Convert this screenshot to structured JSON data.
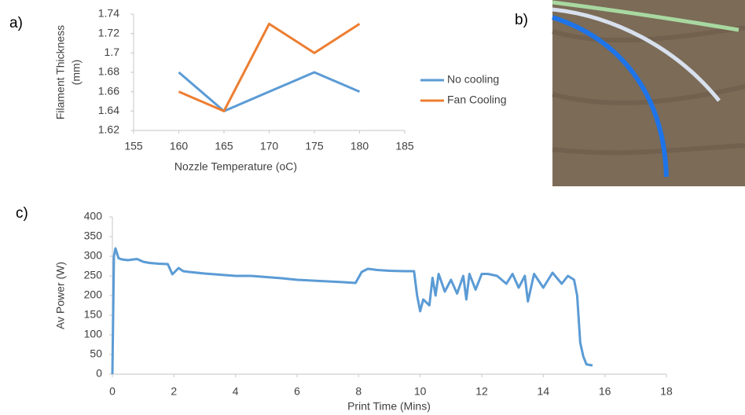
{
  "chart_data": [
    {
      "type": "line",
      "label": "a)",
      "x": [
        160,
        165,
        170,
        175,
        180
      ],
      "series": [
        {
          "name": "No cooling",
          "color": "#5b9bd5",
          "values": [
            1.68,
            1.64,
            1.66,
            1.68,
            1.66
          ]
        },
        {
          "name": "Fan Cooling",
          "color": "#ed7d31",
          "values": [
            1.66,
            1.64,
            1.73,
            1.7,
            1.73
          ]
        }
      ],
      "xlabel": "Nozzle Temperature (oC)",
      "ylabel": [
        "Filament Thickness",
        "(mm)"
      ],
      "xlim": [
        155,
        185
      ],
      "xticks": [
        155,
        160,
        165,
        170,
        175,
        180,
        185
      ],
      "ylim": [
        1.62,
        1.74
      ],
      "yticks": [
        1.62,
        1.64,
        1.66,
        1.68,
        1.7,
        1.72,
        1.74
      ],
      "legend": "right"
    },
    {
      "type": "line",
      "label": "c)",
      "x": [
        0,
        0.05,
        0.1,
        0.2,
        0.3,
        0.5,
        0.8,
        1.0,
        1.2,
        1.5,
        1.8,
        1.95,
        2.05,
        2.15,
        2.3,
        2.5,
        3,
        3.5,
        4,
        4.5,
        5,
        5.5,
        6,
        6.5,
        7,
        7.5,
        7.9,
        8.1,
        8.3,
        8.6,
        9,
        9.5,
        9.8,
        9.9,
        10.0,
        10.1,
        10.3,
        10.4,
        10.5,
        10.6,
        10.8,
        11,
        11.2,
        11.4,
        11.5,
        11.6,
        11.8,
        12,
        12.2,
        12.5,
        12.8,
        13,
        13.2,
        13.4,
        13.5,
        13.7,
        14,
        14.3,
        14.6,
        14.8,
        15,
        15.1,
        15.2,
        15.3,
        15.4,
        15.6
      ],
      "series": [
        {
          "color": "#5b9bd5",
          "values": [
            0,
            300,
            320,
            295,
            292,
            290,
            293,
            286,
            283,
            281,
            280,
            254,
            262,
            270,
            262,
            260,
            256,
            253,
            250,
            250,
            247,
            244,
            240,
            238,
            236,
            234,
            232,
            260,
            268,
            265,
            263,
            262,
            262,
            200,
            160,
            190,
            175,
            245,
            200,
            255,
            210,
            240,
            205,
            250,
            190,
            255,
            215,
            255,
            255,
            250,
            230,
            255,
            220,
            250,
            185,
            255,
            220,
            258,
            230,
            250,
            240,
            200,
            80,
            45,
            25,
            22
          ]
        }
      ],
      "xlabel": "Print Time (Mins)",
      "ylabel": "Av Power (W)",
      "xlim": [
        0,
        18
      ],
      "xticks": [
        0,
        2,
        4,
        6,
        8,
        10,
        12,
        14,
        16,
        18
      ],
      "ylim": [
        0,
        400
      ],
      "yticks": [
        0,
        50,
        100,
        150,
        200,
        250,
        300,
        350,
        400
      ]
    }
  ],
  "photo_label": "b)"
}
